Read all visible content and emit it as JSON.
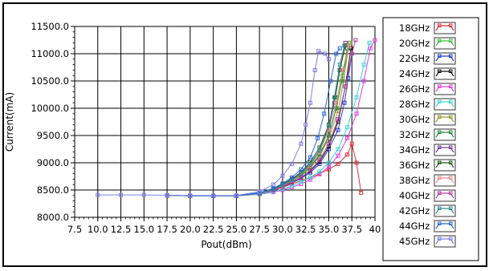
{
  "chart_data": {
    "type": "line",
    "title": "",
    "xlabel": "Pout(dBm)",
    "ylabel": "Current(mA)",
    "xlim": [
      7.5,
      40
    ],
    "ylim": [
      8000,
      11500
    ],
    "x_ticks": [
      "7.5",
      "10.0",
      "12.5",
      "15.0",
      "17.5",
      "20.0",
      "22.5",
      "25.0",
      "27.5",
      "30.0",
      "32.5",
      "35.0",
      "37.5",
      "40"
    ],
    "y_ticks": [
      "8000.0",
      "8500.0",
      "9000.0",
      "9500.0",
      "10000.0",
      "10500.0",
      "11000.0",
      "11500.0"
    ],
    "grid": true,
    "legend_position": "right",
    "series": [
      {
        "name": "18GHz",
        "color": "#e0303a",
        "points": [
          [
            17.5,
            8400
          ],
          [
            20,
            8395
          ],
          [
            22.5,
            8390
          ],
          [
            25,
            8392
          ],
          [
            27.5,
            8430
          ],
          [
            29,
            8490
          ],
          [
            30,
            8550
          ],
          [
            31,
            8610
          ],
          [
            32,
            8670
          ],
          [
            33,
            8730
          ],
          [
            34,
            8800
          ],
          [
            35,
            8880
          ],
          [
            36,
            8980
          ],
          [
            37,
            9150
          ],
          [
            37.5,
            9350
          ],
          [
            38,
            9000
          ],
          [
            38.5,
            8450
          ]
        ]
      },
      {
        "name": "20GHz",
        "color": "#3ec23e",
        "points": [
          [
            17.5,
            8400
          ],
          [
            20,
            8395
          ],
          [
            22.5,
            8390
          ],
          [
            25,
            8393
          ],
          [
            27.5,
            8440
          ],
          [
            29,
            8510
          ],
          [
            30,
            8580
          ],
          [
            31,
            8660
          ],
          [
            32,
            8760
          ],
          [
            33,
            8900
          ],
          [
            34,
            9150
          ],
          [
            35,
            9500
          ],
          [
            35.8,
            10000
          ],
          [
            36.5,
            10600
          ],
          [
            37.3,
            11200
          ]
        ]
      },
      {
        "name": "22GHz",
        "color": "#2040d0",
        "points": [
          [
            17.5,
            8400
          ],
          [
            20,
            8395
          ],
          [
            22.5,
            8390
          ],
          [
            25,
            8393
          ],
          [
            27.5,
            8440
          ],
          [
            29,
            8500
          ],
          [
            30,
            8560
          ],
          [
            31,
            8630
          ],
          [
            32,
            8710
          ],
          [
            33,
            8820
          ],
          [
            34,
            8980
          ],
          [
            35,
            9250
          ],
          [
            36,
            9600
          ],
          [
            36.7,
            10100
          ],
          [
            37.1,
            10550
          ],
          [
            37.5,
            11000
          ]
        ]
      },
      {
        "name": "24GHz",
        "color": "#111111",
        "points": [
          [
            17.5,
            8400
          ],
          [
            20,
            8395
          ],
          [
            22.5,
            8390
          ],
          [
            25,
            8393
          ],
          [
            27.5,
            8440
          ],
          [
            29,
            8505
          ],
          [
            30,
            8570
          ],
          [
            31,
            8645
          ],
          [
            32,
            8730
          ],
          [
            33,
            8850
          ],
          [
            34,
            9020
          ],
          [
            35,
            9300
          ],
          [
            36,
            9750
          ],
          [
            36.8,
            10400
          ],
          [
            37.4,
            11100
          ]
        ]
      },
      {
        "name": "26GHz",
        "color": "#e23ee2",
        "points": [
          [
            17.5,
            8400
          ],
          [
            20,
            8395
          ],
          [
            22.5,
            8390
          ],
          [
            25,
            8392
          ],
          [
            27.5,
            8420
          ],
          [
            29,
            8460
          ],
          [
            30,
            8500
          ],
          [
            31,
            8550
          ],
          [
            32,
            8610
          ],
          [
            33,
            8690
          ],
          [
            34,
            8790
          ],
          [
            35,
            8930
          ],
          [
            36,
            9130
          ],
          [
            37,
            9450
          ],
          [
            38,
            9900
          ],
          [
            38.8,
            10500
          ],
          [
            39.5,
            11100
          ],
          [
            40,
            11250
          ]
        ]
      },
      {
        "name": "28GHz",
        "color": "#38d6d6",
        "points": [
          [
            17.5,
            8400
          ],
          [
            20,
            8395
          ],
          [
            22.5,
            8390
          ],
          [
            25,
            8392
          ],
          [
            27.5,
            8425
          ],
          [
            29,
            8470
          ],
          [
            30,
            8520
          ],
          [
            31,
            8575
          ],
          [
            32,
            8645
          ],
          [
            33,
            8730
          ],
          [
            34,
            8840
          ],
          [
            35,
            9000
          ],
          [
            36,
            9250
          ],
          [
            37,
            9650
          ],
          [
            38,
            10200
          ],
          [
            38.8,
            10800
          ],
          [
            39.4,
            11200
          ]
        ]
      },
      {
        "name": "30GHz",
        "color": "#9a9a2a",
        "points": [
          [
            17.5,
            8400
          ],
          [
            20,
            8395
          ],
          [
            22.5,
            8390
          ],
          [
            25,
            8393
          ],
          [
            27.5,
            8440
          ],
          [
            29,
            8505
          ],
          [
            30,
            8575
          ],
          [
            31,
            8660
          ],
          [
            32,
            8770
          ],
          [
            33,
            8910
          ],
          [
            34,
            9120
          ],
          [
            35,
            9450
          ],
          [
            36,
            9950
          ],
          [
            36.6,
            10500
          ],
          [
            37.2,
            11200
          ]
        ]
      },
      {
        "name": "32GHz",
        "color": "#1e8f3c",
        "points": [
          [
            17.5,
            8400
          ],
          [
            20,
            8395
          ],
          [
            22.5,
            8390
          ],
          [
            25,
            8393
          ],
          [
            27.5,
            8440
          ],
          [
            29,
            8510
          ],
          [
            30,
            8585
          ],
          [
            31,
            8670
          ],
          [
            32,
            8780
          ],
          [
            33,
            8930
          ],
          [
            34,
            9150
          ],
          [
            35,
            9500
          ],
          [
            35.8,
            10000
          ],
          [
            36.4,
            10500
          ],
          [
            37,
            11100
          ]
        ]
      },
      {
        "name": "34GHz",
        "color": "#7a3aa8",
        "points": [
          [
            17.5,
            8400
          ],
          [
            20,
            8395
          ],
          [
            22.5,
            8390
          ],
          [
            25,
            8393
          ],
          [
            27.5,
            8445
          ],
          [
            29,
            8515
          ],
          [
            30,
            8595
          ],
          [
            31,
            8690
          ],
          [
            32,
            8810
          ],
          [
            33,
            8980
          ],
          [
            34,
            9230
          ],
          [
            35,
            9650
          ],
          [
            35.6,
            10100
          ],
          [
            36.2,
            10700
          ],
          [
            36.8,
            11200
          ]
        ]
      },
      {
        "name": "36GHz",
        "color": "#1a5e1a",
        "points": [
          [
            17.5,
            8400
          ],
          [
            20,
            8395
          ],
          [
            22.5,
            8390
          ],
          [
            25,
            8393
          ],
          [
            27.5,
            8445
          ],
          [
            29,
            8520
          ],
          [
            30,
            8605
          ],
          [
            31,
            8705
          ],
          [
            32,
            8830
          ],
          [
            33,
            9010
          ],
          [
            34,
            9280
          ],
          [
            35,
            9700
          ],
          [
            35.7,
            10200
          ],
          [
            36.2,
            10700
          ],
          [
            36.8,
            11150
          ]
        ]
      },
      {
        "name": "38GHz",
        "color": "#f08a8a",
        "points": [
          [
            17.5,
            8400
          ],
          [
            20,
            8395
          ],
          [
            22.5,
            8390
          ],
          [
            25,
            8393
          ],
          [
            27.5,
            8440
          ],
          [
            29,
            8505
          ],
          [
            30,
            8580
          ],
          [
            31,
            8670
          ],
          [
            32,
            8790
          ],
          [
            33,
            8950
          ],
          [
            34,
            9200
          ],
          [
            35,
            9600
          ],
          [
            35.8,
            10100
          ],
          [
            36.5,
            10700
          ],
          [
            37.2,
            11150
          ]
        ]
      },
      {
        "name": "40GHz",
        "color": "#b83aa0",
        "points": [
          [
            17.5,
            8400
          ],
          [
            20,
            8395
          ],
          [
            22.5,
            8390
          ],
          [
            25,
            8393
          ],
          [
            27.5,
            8435
          ],
          [
            29,
            8495
          ],
          [
            30,
            8560
          ],
          [
            31,
            8635
          ],
          [
            32,
            8730
          ],
          [
            33,
            8860
          ],
          [
            34,
            9050
          ],
          [
            35,
            9350
          ],
          [
            36,
            9800
          ],
          [
            36.8,
            10400
          ],
          [
            37.5,
            11000
          ],
          [
            37.9,
            11250
          ]
        ]
      },
      {
        "name": "42GHz",
        "color": "#2e8c8c",
        "points": [
          [
            17.5,
            8400
          ],
          [
            20,
            8395
          ],
          [
            22.5,
            8390
          ],
          [
            25,
            8393
          ],
          [
            27.5,
            8440
          ],
          [
            29,
            8510
          ],
          [
            30,
            8590
          ],
          [
            31,
            8680
          ],
          [
            32,
            8800
          ],
          [
            33,
            8970
          ],
          [
            34,
            9230
          ],
          [
            35,
            9680
          ],
          [
            35.6,
            10200
          ],
          [
            36.2,
            10800
          ],
          [
            36.7,
            11150
          ]
        ]
      },
      {
        "name": "44GHz",
        "color": "#2a6ad8",
        "points": [
          [
            17.5,
            8400
          ],
          [
            20,
            8395
          ],
          [
            22.5,
            8390
          ],
          [
            25,
            8393
          ],
          [
            27.5,
            8450
          ],
          [
            29,
            8530
          ],
          [
            30,
            8620
          ],
          [
            31,
            8730
          ],
          [
            32,
            8880
          ],
          [
            33,
            9100
          ],
          [
            33.8,
            9450
          ],
          [
            34.5,
            9900
          ],
          [
            35.2,
            10500
          ],
          [
            35.8,
            11000
          ],
          [
            36.2,
            11100
          ]
        ]
      },
      {
        "name": "45GHz",
        "color": "#7e7ee8",
        "points": [
          [
            10,
            8410
          ],
          [
            12.5,
            8410
          ],
          [
            15,
            8410
          ],
          [
            17.5,
            8405
          ],
          [
            20,
            8400
          ],
          [
            22.5,
            8398
          ],
          [
            25,
            8400
          ],
          [
            27.5,
            8470
          ],
          [
            29,
            8600
          ],
          [
            30,
            8760
          ],
          [
            31,
            8980
          ],
          [
            32,
            9350
          ],
          [
            32.5,
            9700
          ],
          [
            33,
            10100
          ],
          [
            33.5,
            10700
          ],
          [
            33.9,
            11050
          ],
          [
            34.6,
            11000
          ],
          [
            35,
            10900
          ]
        ]
      }
    ]
  }
}
